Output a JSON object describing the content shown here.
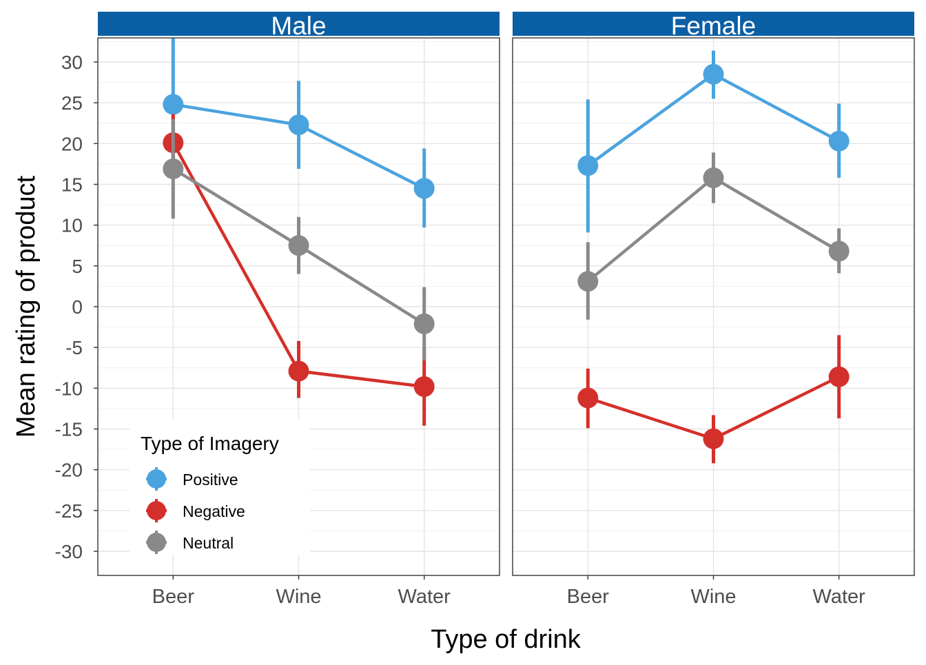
{
  "chart_data": {
    "type": "line",
    "title": "",
    "xlabel": "Type of drink",
    "ylabel": "Mean rating of product",
    "ylim": [
      -33,
      33
    ],
    "yticks": [
      30,
      25,
      20,
      15,
      10,
      5,
      0,
      -5,
      -10,
      -15,
      -20,
      -25,
      -30
    ],
    "ytick_labels": [
      "30",
      "25",
      "20",
      "15",
      "10",
      "5",
      "0",
      "-5",
      "-10",
      "-15",
      "-20",
      "-25",
      "-30"
    ],
    "categories": [
      "Beer",
      "Wine",
      "Water"
    ],
    "grid": true,
    "legend": {
      "title": "Type of Imagery",
      "placement": "bottom-left inside first panel"
    },
    "colors": {
      "Positive": "#4aa3df",
      "Negative": "#d4302b",
      "Neutral": "#898989",
      "strip": "#0b5fa4"
    },
    "panels": [
      {
        "label": "Male",
        "series": [
          {
            "name": "Positive",
            "values": [
              24.8,
              22.3,
              14.5
            ],
            "lower": [
              17.0,
              16.9,
              9.7
            ],
            "upper": [
              33.5,
              27.7,
              19.4
            ]
          },
          {
            "name": "Negative",
            "values": [
              20.1,
              -7.9,
              -9.8
            ],
            "lower": [
              16.5,
              -11.2,
              -14.6
            ],
            "upper": [
              23.6,
              -4.2,
              -5.0
            ]
          },
          {
            "name": "Neutral",
            "values": [
              16.9,
              7.5,
              -2.1
            ],
            "lower": [
              10.8,
              4.0,
              -6.6
            ],
            "upper": [
              23.0,
              11.0,
              2.4
            ]
          }
        ]
      },
      {
        "label": "Female",
        "series": [
          {
            "name": "Positive",
            "values": [
              17.3,
              28.5,
              20.3
            ],
            "lower": [
              9.1,
              25.5,
              15.8
            ],
            "upper": [
              25.4,
              31.4,
              24.9
            ]
          },
          {
            "name": "Negative",
            "values": [
              -11.2,
              -16.2,
              -8.6
            ],
            "lower": [
              -14.9,
              -19.2,
              -13.7
            ],
            "upper": [
              -7.6,
              -13.3,
              -3.5
            ]
          },
          {
            "name": "Neutral",
            "values": [
              3.1,
              15.8,
              6.8
            ],
            "lower": [
              -1.6,
              12.7,
              4.1
            ],
            "upper": [
              7.9,
              18.9,
              9.6
            ]
          }
        ]
      }
    ]
  }
}
